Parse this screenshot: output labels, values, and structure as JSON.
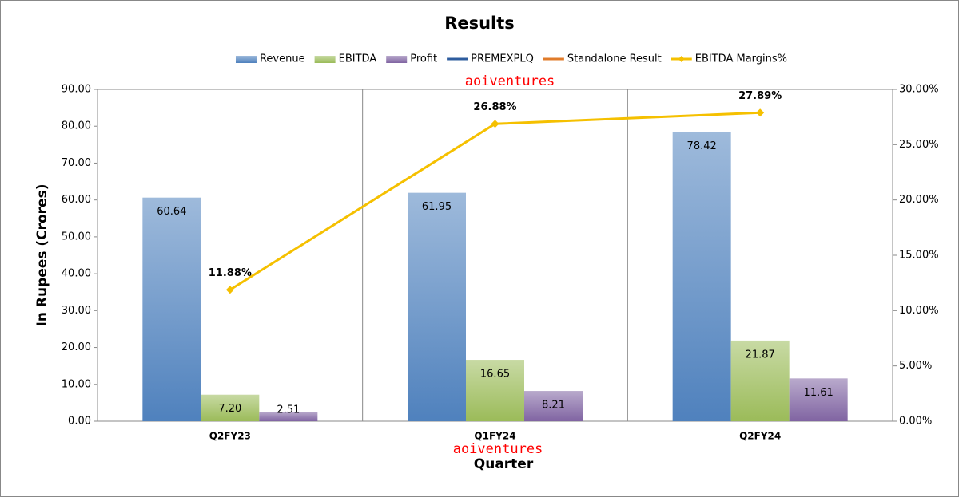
{
  "chart_data": {
    "type": "bar",
    "title": "Results",
    "x_label": "Quarter",
    "y_label": "In Rupees (Crores)",
    "annotations": [
      "aoiventures",
      "aoiventures"
    ],
    "categories": [
      "Q2FY23",
      "Q1FY24",
      "Q2FY24"
    ],
    "series": [
      {
        "name": "Revenue",
        "type": "bar",
        "color": "#4f81bd",
        "values": [
          60.64,
          61.95,
          78.42
        ]
      },
      {
        "name": "EBITDA",
        "type": "bar",
        "color": "#9bbb59",
        "values": [
          7.2,
          16.65,
          21.87
        ],
        "value_labels": [
          "7.20",
          "16.65",
          "21.87"
        ]
      },
      {
        "name": "Profit",
        "type": "bar",
        "color": "#8064a2",
        "values": [
          2.51,
          8.21,
          11.61
        ]
      },
      {
        "name": "PREMEXPLQ",
        "type": "line",
        "color": "#2e5c9e",
        "values": [
          null,
          null,
          null
        ]
      },
      {
        "name": "Standalone Result",
        "type": "line",
        "color": "#e07b2a",
        "values": [
          null,
          null,
          null
        ]
      },
      {
        "name": "EBITDA Margins%",
        "type": "line",
        "axis": "y2",
        "color": "#f5c000",
        "values": [
          11.88,
          26.88,
          27.89
        ],
        "value_labels": [
          "11.88%",
          "26.88%",
          "27.89%"
        ]
      }
    ],
    "ylim": [
      0,
      90
    ],
    "yticks": [
      {
        "value": 0,
        "label": "0.00"
      },
      {
        "value": 10,
        "label": "10.00"
      },
      {
        "value": 20,
        "label": "20.00"
      },
      {
        "value": 30,
        "label": "30.00"
      },
      {
        "value": 40,
        "label": "40.00"
      },
      {
        "value": 50,
        "label": "50.00"
      },
      {
        "value": 60,
        "label": "60.00"
      },
      {
        "value": 70,
        "label": "70.00"
      },
      {
        "value": 80,
        "label": "80.00"
      },
      {
        "value": 90,
        "label": "90.00"
      }
    ],
    "y2lim": [
      0,
      30
    ],
    "y2ticks": [
      {
        "value": 0,
        "label": "0.00%"
      },
      {
        "value": 5,
        "label": "5.00%"
      },
      {
        "value": 10,
        "label": "10.00%"
      },
      {
        "value": 15,
        "label": "15.00%"
      },
      {
        "value": 20,
        "label": "20.00%"
      },
      {
        "value": 25,
        "label": "25.00%"
      },
      {
        "value": 30,
        "label": "30.00%"
      }
    ],
    "legend": "top"
  }
}
